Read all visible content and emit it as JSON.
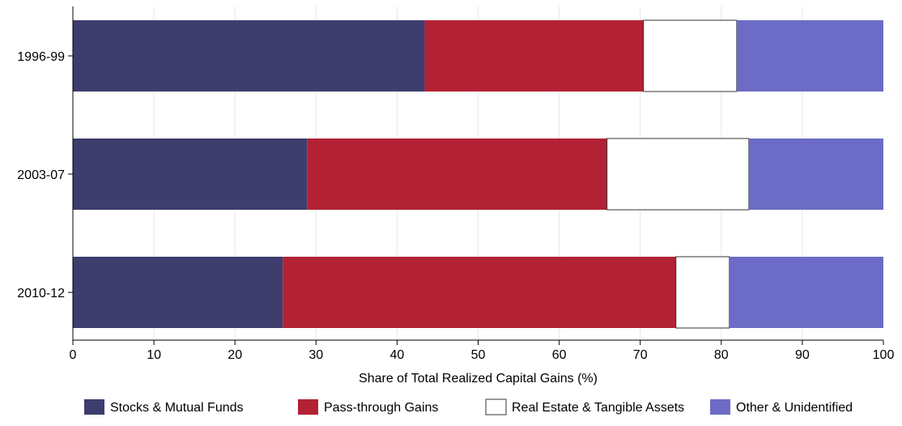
{
  "chart_data": {
    "type": "bar",
    "orientation": "horizontal",
    "stacked": true,
    "title": "",
    "xlabel": "Share of Total Realized Capital Gains (%)",
    "ylabel": "",
    "xlim": [
      0,
      100
    ],
    "xticks": [
      "0",
      "10",
      "20",
      "30",
      "40",
      "50",
      "60",
      "70",
      "80",
      "90",
      "100"
    ],
    "grid": true,
    "legend_position": "bottom",
    "categories": [
      "1996-99",
      "2003-07",
      "2010-12"
    ],
    "series": [
      {
        "name": "Stocks & Mutual Funds",
        "color": "#3d3d6e",
        "values": [
          43.4,
          28.9,
          25.9
        ]
      },
      {
        "name": "Pass-through Gains",
        "color": "#b22234",
        "values": [
          27.0,
          37.0,
          48.5
        ]
      },
      {
        "name": "Real Estate & Tangible Assets",
        "color": "#ffffff",
        "values": [
          11.5,
          17.5,
          6.6
        ]
      },
      {
        "name": "Other & Unidentified",
        "color": "#6c6cc6",
        "values": [
          18.1,
          16.6,
          19.0
        ]
      }
    ]
  }
}
